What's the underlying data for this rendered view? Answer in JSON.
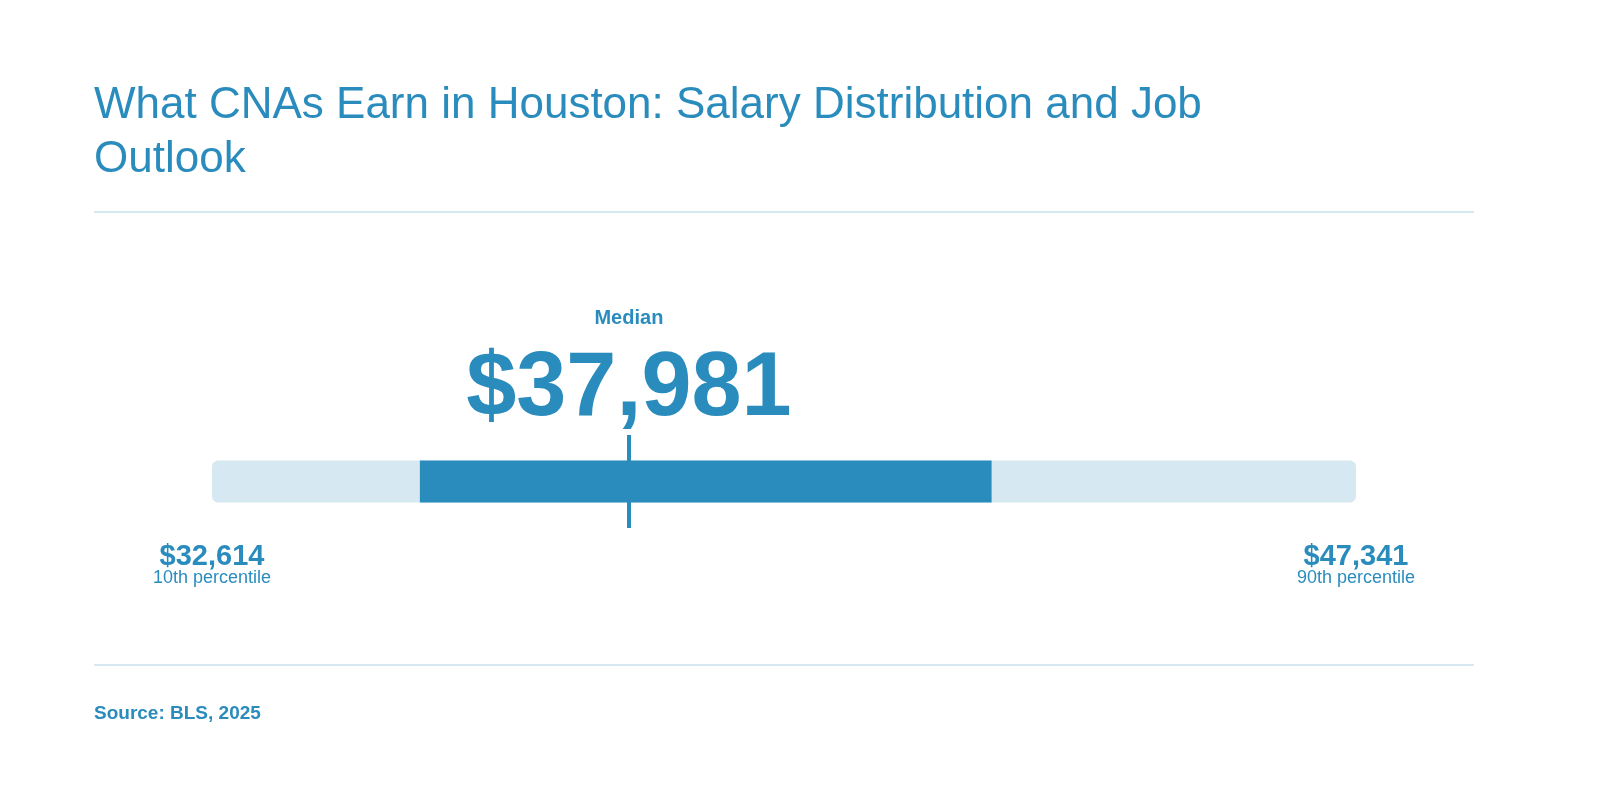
{
  "chart_data": {
    "type": "bar",
    "orientation": "horizontal",
    "title": "What CNAs Earn in Houston: Salary Distribution and Job Outlook",
    "categories": [
      null
    ],
    "series": [
      {
        "color": "#d6e9f2",
        "values": [
          14727
        ],
        "base": [
          32614
        ]
      },
      {
        "color": "#2a8cbd",
        "values": [
          7360
        ],
        "base": [
          35290
        ]
      }
    ],
    "xlim": [
      32614,
      47341
    ],
    "xticks": [
      {
        "value": 32614,
        "label": "$32,614"
      },
      {
        "value": 47341,
        "label": "$47,341"
      }
    ],
    "ref_lines": [
      {
        "axis": "x",
        "value": 37981,
        "label": "$37,981",
        "color": "#2a8cbd"
      }
    ],
    "annotations": [
      "Median",
      "10th percentile",
      "90th percentile",
      "Source: BLS, 2025"
    ],
    "grid": false
  }
}
